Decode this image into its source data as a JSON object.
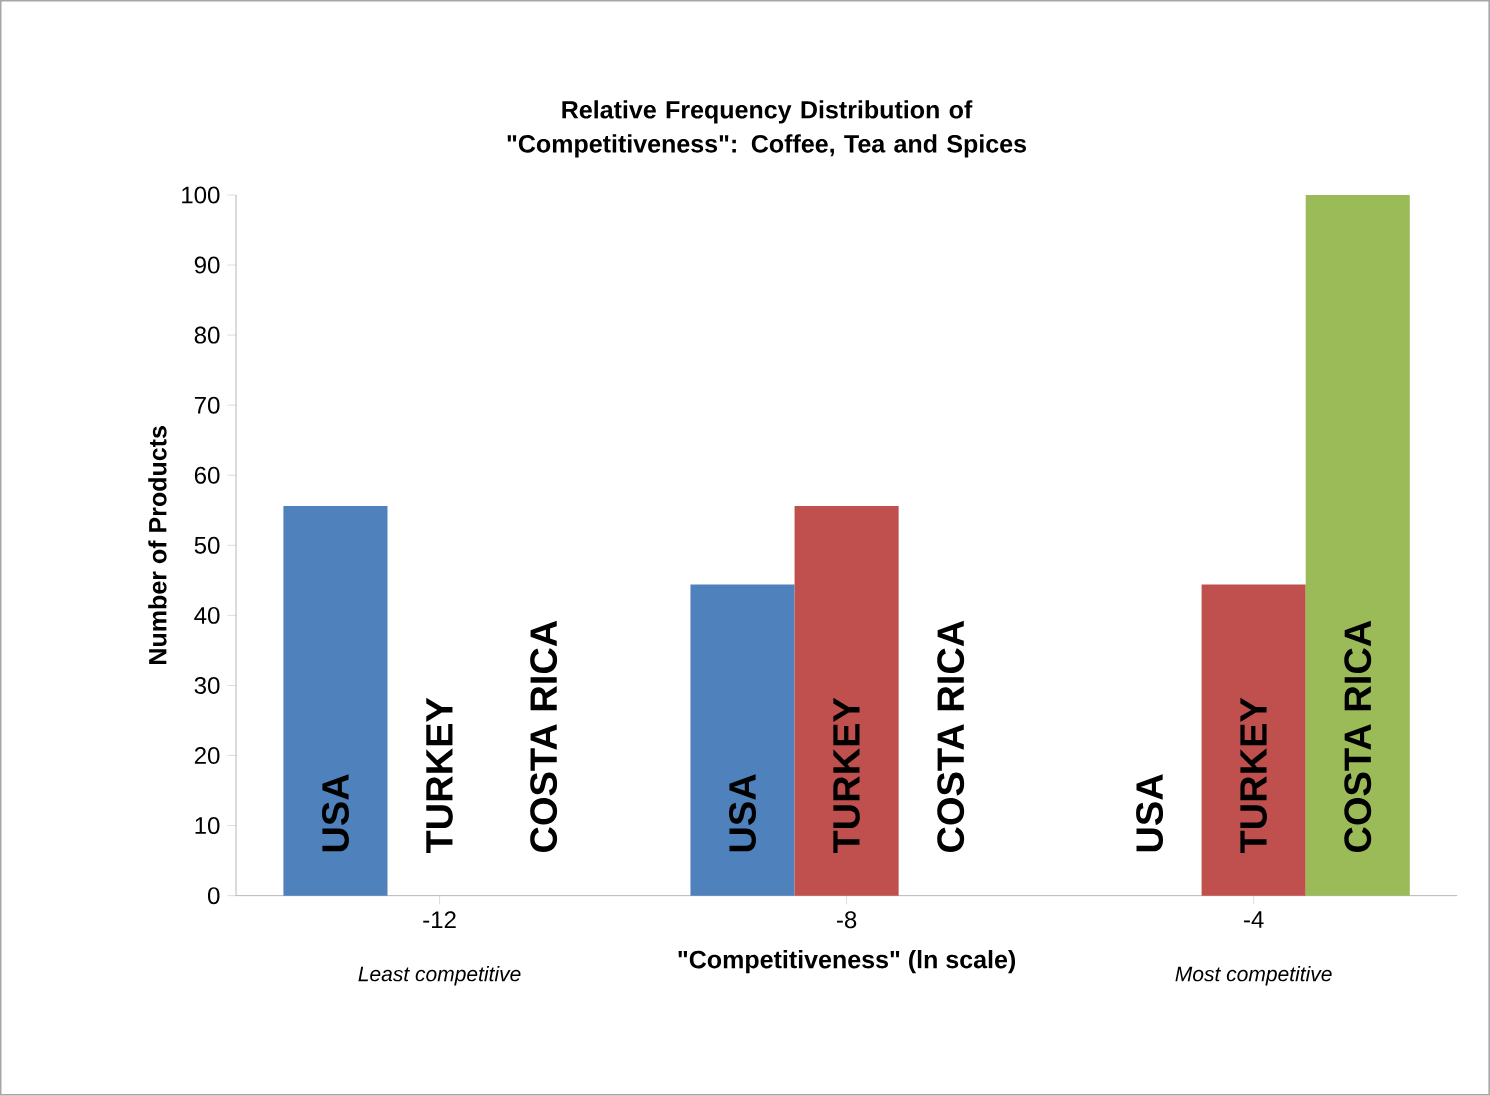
{
  "chart_data": {
    "type": "bar",
    "title": "Relative Frequency Distribution of \"Competitiveness\": Coffee, Tea and Spices",
    "xlabel": "\"Competitiveness\"  (ln scale)",
    "ylabel": "Number of Products",
    "categories": [
      "-12",
      "-8",
      "-4"
    ],
    "series": [
      {
        "name": "USA",
        "color": "#4f81bd",
        "values": [
          55.6,
          44.4,
          0
        ]
      },
      {
        "name": "TURKEY",
        "color": "#c0504d",
        "values": [
          0,
          55.6,
          44.4
        ]
      },
      {
        "name": "COSTA RICA",
        "color": "#9bbb59",
        "values": [
          0,
          0,
          100
        ]
      }
    ],
    "ylim": [
      0,
      100
    ],
    "yticks": [
      0,
      10,
      20,
      30,
      40,
      50,
      60,
      70,
      80,
      90,
      100
    ],
    "annotations": [
      "Least competitive",
      "Most competitive"
    ]
  }
}
